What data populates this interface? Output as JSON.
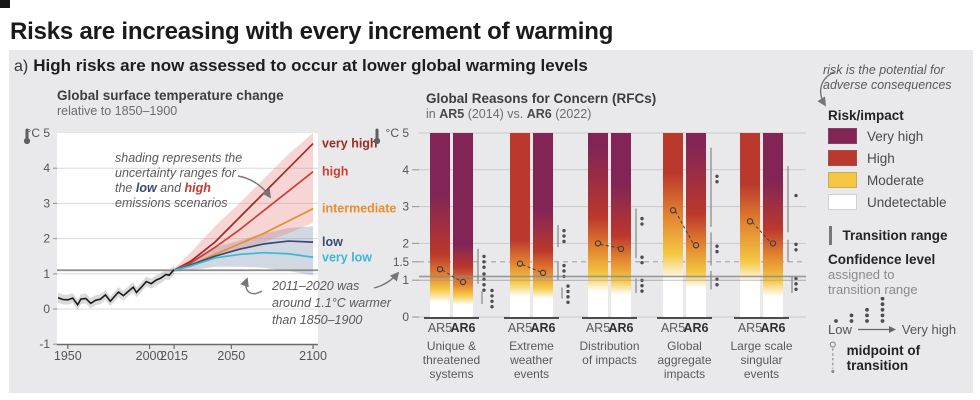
{
  "title": "Risks are increasing with every increment of warming",
  "panel": {
    "label_prefix": "a)",
    "label": "High risks are now assessed to occur at lower global warming levels"
  },
  "colors": {
    "panel_bg": "#e9e9eb",
    "very_high": "#822556",
    "high": "#bb382c",
    "orange": "#e2802f",
    "moderate": "#f4c843",
    "undetectable": "#ffffff",
    "reference_line": "#8a8a8a",
    "annotation": "#5a5a5a"
  },
  "chart_data": [
    {
      "type": "line",
      "title": "Global surface temperature change",
      "subtitle": "relative to 1850–1900",
      "unit_label": "°C 5",
      "ylabel": "°C",
      "ylim": [
        -1,
        5
      ],
      "xlim": [
        1944,
        2103
      ],
      "y_ticks": [
        4,
        3,
        2,
        1,
        0,
        -1
      ],
      "x_ticks": [
        1950,
        2000,
        2015,
        2050,
        2100
      ],
      "reference_level": 1.1,
      "grid": "on",
      "historical": {
        "name": "historical",
        "color": "#1a1a1a",
        "band": 0.14,
        "x": [
          1944,
          1947,
          1950,
          1953,
          1956,
          1958,
          1961,
          1964,
          1967,
          1970,
          1973,
          1976,
          1979,
          1981,
          1984,
          1987,
          1990,
          1992,
          1995,
          1998,
          2001,
          2004,
          2007,
          2010,
          2012,
          2015
        ],
        "y": [
          0.32,
          0.27,
          0.26,
          0.31,
          0.12,
          0.28,
          0.3,
          0.16,
          0.25,
          0.28,
          0.4,
          0.22,
          0.38,
          0.48,
          0.38,
          0.5,
          0.62,
          0.47,
          0.62,
          0.78,
          0.72,
          0.82,
          0.88,
          0.98,
          0.96,
          1.12
        ]
      },
      "scenario_x": [
        2015,
        2025,
        2040,
        2055,
        2070,
        2085,
        2100
      ],
      "series": [
        {
          "name": "very high",
          "color": "#9b2b24",
          "values": [
            1.1,
            1.35,
            1.9,
            2.6,
            3.3,
            4.0,
            4.7
          ]
        },
        {
          "name": "high",
          "color": "#cf3e33",
          "values": [
            1.1,
            1.3,
            1.75,
            2.25,
            2.8,
            3.35,
            3.9
          ]
        },
        {
          "name": "intermediate",
          "color": "#e78f2e",
          "values": [
            1.1,
            1.25,
            1.55,
            1.85,
            2.15,
            2.5,
            2.85
          ]
        },
        {
          "name": "low",
          "color": "#3a4a75",
          "values": [
            1.1,
            1.25,
            1.5,
            1.7,
            1.85,
            1.93,
            1.9
          ]
        },
        {
          "name": "very low",
          "color": "#3bb7d8",
          "values": [
            1.1,
            1.22,
            1.45,
            1.55,
            1.6,
            1.57,
            1.47
          ]
        }
      ],
      "bands": [
        {
          "name": "low emissions uncertainty",
          "color": "rgba(105,125,160,0.30)",
          "upper": [
            1.15,
            1.4,
            1.75,
            1.95,
            2.15,
            2.3,
            2.35
          ],
          "lower": [
            1.05,
            1.1,
            1.2,
            1.2,
            1.17,
            1.08,
            0.95
          ]
        },
        {
          "name": "high emissions uncertainty",
          "color": "rgba(226,125,122,0.32)",
          "upper": [
            1.15,
            1.6,
            2.35,
            3.0,
            3.7,
            4.4,
            5.05
          ],
          "lower": [
            1.05,
            1.3,
            1.55,
            1.7,
            1.9,
            2.15,
            2.45
          ]
        }
      ],
      "annotations": {
        "shading": {
          "lines": [
            "shading represents the",
            "uncertainty ranges for"
          ],
          "colored": [
            {
              "t": "the "
            },
            {
              "t": "low",
              "c": "#3a4a75"
            },
            {
              "t": " and "
            },
            {
              "t": "high",
              "c": "#c43a30"
            }
          ],
          "tail": "emissions scenarios"
        },
        "warming": {
          "lines": [
            "2011–2020 was",
            "around 1.1°C warmer",
            "than 1850–1900"
          ]
        }
      }
    },
    {
      "type": "bar",
      "title": "Global Reasons for Concern (RFCs)",
      "subtitle_parts": [
        {
          "t": "in ",
          "b": false
        },
        {
          "t": "AR5",
          "b": true
        },
        {
          "t": " (2014) vs. ",
          "b": false
        },
        {
          "t": "AR6",
          "b": true
        },
        {
          "t": " (2022)",
          "b": false
        }
      ],
      "unit_label": "°C 5",
      "ylabel": "°C",
      "ylim": [
        0,
        5
      ],
      "y_ticks": [
        4,
        3,
        2,
        1.5,
        1,
        0
      ],
      "dashed_level": 1.5,
      "reference_level": 1.1,
      "bar_labels": [
        "AR5",
        "AR6"
      ],
      "categories": [
        "Unique &|threatened|systems",
        "Extreme|weather|events",
        "Distribution|of impacts",
        "Global|aggregate|impacts",
        "Large scale|singular|events"
      ],
      "groups": [
        {
          "ar5": {
            "stops": [
              [
                "U",
                0.4
              ],
              [
                "M",
                0.75
              ],
              [
                "O",
                1.15
              ],
              [
                "H",
                1.7
              ],
              [
                "V",
                3.3
              ]
            ],
            "midpoint": 1.3
          },
          "ar6": {
            "stops": [
              [
                "U",
                0.33
              ],
              [
                "M",
                0.6
              ],
              [
                "O",
                0.9
              ],
              [
                "H",
                1.35
              ],
              [
                "V",
                1.95
              ]
            ],
            "midpoint": 0.95
          },
          "lines": [
            [
              5,
              1.85,
              0.9
            ],
            [
              9,
              0.7,
              0.35
            ]
          ],
          "dots": [
            [
              11,
              1.5,
              3
            ],
            [
              11,
              0.95,
              4
            ],
            [
              19,
              0.5,
              4
            ]
          ]
        },
        {
          "ar5": {
            "stops": [
              [
                "U",
                0.55
              ],
              [
                "M",
                0.95
              ],
              [
                "O",
                1.5
              ],
              [
                "H",
                2.1
              ]
            ],
            "midpoint": 1.45
          },
          "ar6": {
            "stops": [
              [
                "U",
                0.5
              ],
              [
                "M",
                0.8
              ],
              [
                "O",
                1.25
              ],
              [
                "H",
                1.8
              ],
              [
                "V",
                2.9
              ]
            ],
            "midpoint": 1.2
          },
          "lines": [
            [
              5,
              2.5,
              1.9
            ],
            [
              5,
              1.5,
              1.0
            ],
            [
              9,
              0.8,
              0.5
            ]
          ],
          "dots": [
            [
              11,
              2.2,
              3
            ],
            [
              11,
              1.25,
              3
            ],
            [
              15,
              0.62,
              4
            ]
          ]
        },
        {
          "ar5": {
            "stops": [
              [
                "U",
                0.7
              ],
              [
                "M",
                1.15
              ],
              [
                "O",
                1.9
              ],
              [
                "H",
                2.7
              ],
              [
                "V",
                4.6
              ]
            ],
            "midpoint": 2.0
          },
          "ar6": {
            "stops": [
              [
                "U",
                0.6
              ],
              [
                "M",
                1.0
              ],
              [
                "O",
                1.6
              ],
              [
                "H",
                2.2
              ],
              [
                "V",
                3.6
              ]
            ],
            "midpoint": 1.85
          },
          "lines": [
            [
              5,
              2.95,
              1.6
            ],
            [
              5,
              1.05,
              0.65
            ]
          ],
          "dots": [
            [
              11,
              2.6,
              2
            ],
            [
              11,
              1.55,
              2
            ],
            [
              11,
              0.85,
              3
            ]
          ]
        },
        {
          "ar5": {
            "stops": [
              [
                "U",
                1.0
              ],
              [
                "M",
                1.7
              ],
              [
                "O",
                2.8
              ],
              [
                "H",
                3.9
              ]
            ],
            "midpoint": 2.9
          },
          "ar6": {
            "stops": [
              [
                "U",
                0.8
              ],
              [
                "M",
                1.2
              ],
              [
                "O",
                2.0
              ],
              [
                "H",
                2.8
              ],
              [
                "V",
                4.7
              ]
            ],
            "midpoint": 1.95
          },
          "lines": [
            [
              5,
              4.6,
              2.45
            ],
            [
              5,
              2.3,
              1.4
            ],
            [
              5,
              1.25,
              0.75
            ]
          ],
          "dots": [
            [
              11,
              3.75,
              2
            ],
            [
              11,
              1.85,
              2
            ],
            [
              11,
              0.95,
              2
            ]
          ]
        },
        {
          "ar5": {
            "stops": [
              [
                "U",
                0.95
              ],
              [
                "M",
                1.5
              ],
              [
                "O",
                2.6
              ],
              [
                "H",
                3.6
              ]
            ],
            "midpoint": 2.6
          },
          "ar6": {
            "stops": [
              [
                "U",
                0.55
              ],
              [
                "M",
                1.0
              ],
              [
                "O",
                1.7
              ],
              [
                "H",
                2.4
              ],
              [
                "V",
                3.7
              ]
            ],
            "midpoint": 2.0
          },
          "lines": [
            [
              5,
              4.1,
              2.3
            ],
            [
              5,
              2.1,
              1.5
            ],
            [
              9,
              1.1,
              0.65
            ]
          ],
          "dots": [
            [
              13,
              3.3,
              1
            ],
            [
              13,
              1.9,
              2
            ],
            [
              13,
              0.9,
              3
            ]
          ]
        }
      ]
    }
  ],
  "legend": {
    "note": [
      "risk is the potential for",
      "adverse consequences"
    ],
    "risk_title": "Risk/impact",
    "items": [
      {
        "label": "Very high",
        "color_key": "very_high"
      },
      {
        "label": "High",
        "color_key": "high"
      },
      {
        "label": "Moderate",
        "color_key": "moderate"
      },
      {
        "label": "Undetectable",
        "color_key": "undetectable"
      }
    ],
    "transition_label": "Transition range",
    "confidence_title": "Confidence level",
    "confidence_sub": [
      "assigned to",
      "transition range"
    ],
    "confidence_scale": {
      "low": "Low",
      "high": "Very high",
      "dot_columns": [
        1,
        2,
        3,
        5
      ]
    },
    "midpoint_label": "midpoint of transition"
  }
}
